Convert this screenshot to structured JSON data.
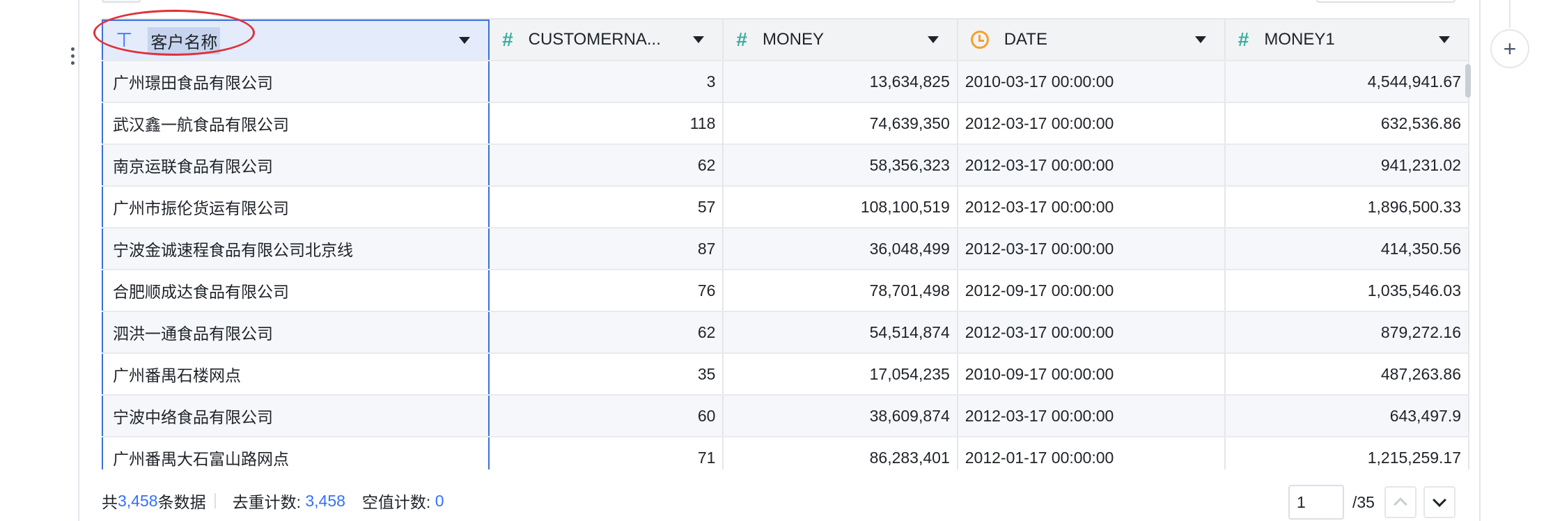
{
  "table": {
    "columns": [
      {
        "label": "客户名称",
        "type": "text-type-icon"
      },
      {
        "label": "CUSTOMERNA...",
        "type": "number-type-icon"
      },
      {
        "label": "MONEY",
        "type": "number-type-icon"
      },
      {
        "label": "DATE",
        "type": "date-type-icon"
      },
      {
        "label": "MONEY1",
        "type": "number-type-icon"
      }
    ],
    "rows": [
      [
        "广州璟田食品有限公司",
        "3",
        "13,634,825",
        "2010-03-17 00:00:00",
        "4,544,941.67"
      ],
      [
        "武汉鑫一航食品有限公司",
        "118",
        "74,639,350",
        "2012-03-17 00:00:00",
        "632,536.86"
      ],
      [
        "南京运联食品有限公司",
        "62",
        "58,356,323",
        "2012-03-17 00:00:00",
        "941,231.02"
      ],
      [
        "广州市振伦货运有限公司",
        "57",
        "108,100,519",
        "2012-03-17 00:00:00",
        "1,896,500.33"
      ],
      [
        "宁波金诚速程食品有限公司北京线",
        "87",
        "36,048,499",
        "2012-03-17 00:00:00",
        "414,350.56"
      ],
      [
        "合肥顺成达食品有限公司",
        "76",
        "78,701,498",
        "2012-09-17 00:00:00",
        "1,035,546.03"
      ],
      [
        "泗洪一通食品有限公司",
        "62",
        "54,514,874",
        "2012-03-17 00:00:00",
        "879,272.16"
      ],
      [
        "广州番禺石楼网点",
        "35",
        "17,054,235",
        "2010-09-17 00:00:00",
        "487,263.86"
      ],
      [
        "宁波中络食品有限公司",
        "60",
        "38,609,874",
        "2012-03-17 00:00:00",
        "643,497.9"
      ],
      [
        "广州番禺大石富山路网点",
        "71",
        "86,283,401",
        "2012-01-17 00:00:00",
        "1,215,259.17"
      ]
    ]
  },
  "footer": {
    "total_prefix": "共",
    "total_count": "3,458",
    "total_suffix": "条数据",
    "distinct_label": "去重计数:",
    "distinct_count": "3,458",
    "null_label": "空值计数:",
    "null_count": "0"
  },
  "pager": {
    "current_page": "1",
    "total_pages": "/35"
  },
  "toolbar": {
    "add_column_label": "+"
  },
  "colors": {
    "accent": "#3370ff",
    "selected_border": "#3a6fd8",
    "annotation": "#e0303a"
  }
}
